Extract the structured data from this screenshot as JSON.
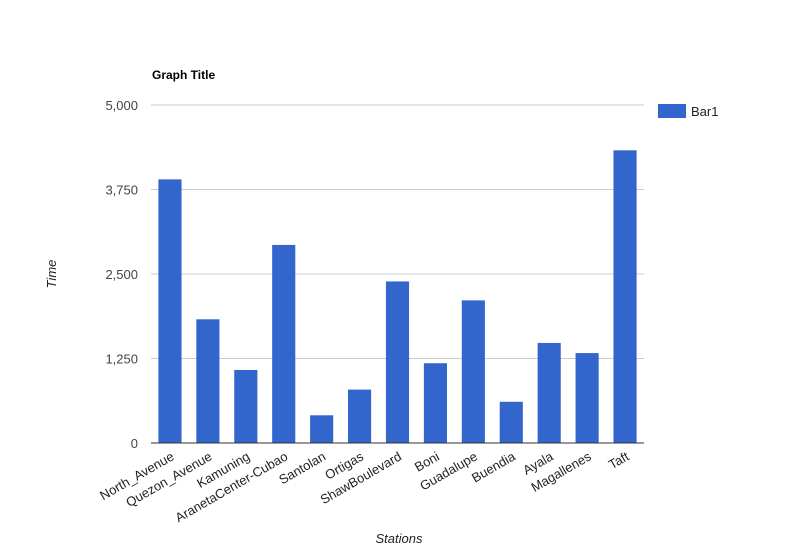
{
  "chart_data": {
    "type": "bar",
    "title": "Graph Title",
    "xlabel": "Stations",
    "ylabel": "Time",
    "categories": [
      "North_Avenue",
      "Quezon_Avenue",
      "Kamuning",
      "AranetaCenter-Cubao",
      "Santolan",
      "Ortigas",
      "ShawBoulevard",
      "Boni",
      "Guadalupe",
      "Buendia",
      "Ayala",
      "Magallenes",
      "Taft"
    ],
    "series": [
      {
        "name": "Bar1",
        "color": "#3366cc",
        "values": [
          3900,
          1830,
          1080,
          2930,
          410,
          790,
          2390,
          1180,
          2110,
          610,
          1480,
          1330,
          4330
        ]
      }
    ],
    "ylim": [
      0,
      5000
    ],
    "yticks": [
      0,
      1250,
      2500,
      3750,
      5000
    ],
    "ytick_labels": [
      "0",
      "1,250",
      "2,500",
      "3,750",
      "5,000"
    ],
    "grid": true,
    "legend": "right"
  }
}
